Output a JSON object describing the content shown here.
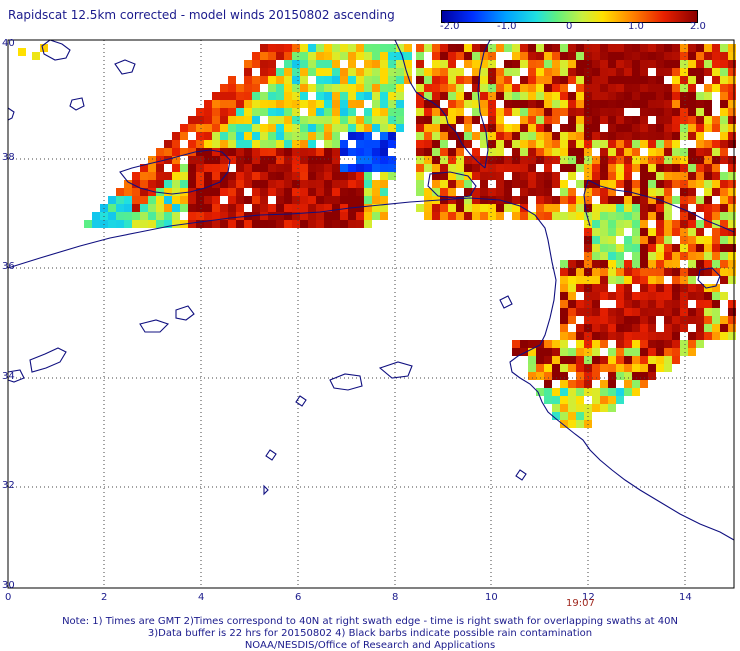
{
  "header": {
    "title": "Rapidscat 12.5km corrected - model winds 20150802 ascending"
  },
  "colorbar": {
    "labels": [
      "-2.0",
      "-1.0",
      "0",
      "1.0",
      "2.0"
    ],
    "min": -2.0,
    "max": 2.0
  },
  "axes": {
    "lon_labels": [
      "0",
      "2",
      "4",
      "6",
      "8",
      "10",
      "12",
      "14"
    ],
    "lat_labels": [
      "40",
      "38",
      "36",
      "34",
      "32",
      "30"
    ]
  },
  "swath": {
    "time_label": "19:07"
  },
  "notes": {
    "line1": "Note: 1) Times are GMT 2)Times correspond to 40N at right swath edge - time is right swath for overlapping swaths at 40N",
    "line2": "3)Data buffer is 22 hrs for 20150802 4) Black barbs indicate possible rain contamination",
    "line3": "NOAA/NESDIS/Office of Research and Applications"
  },
  "colors": {
    "text": "#1a1a8c",
    "coast": "#101080",
    "grid": "#444444",
    "time": "#a0281e"
  }
}
